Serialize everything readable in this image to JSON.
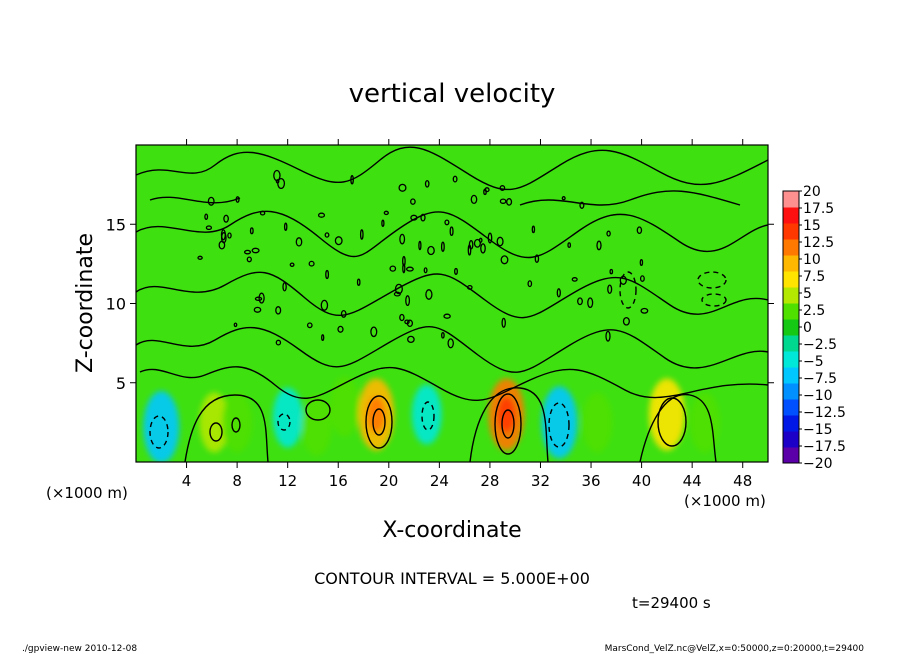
{
  "chart_data": {
    "type": "heatmap",
    "title": "vertical velocity",
    "xlabel": "X-coordinate",
    "ylabel": "Z-coordinate",
    "x_unit": "(×1000 m)",
    "y_unit": "(×1000 m)",
    "xlim": [
      0,
      50
    ],
    "ylim": [
      0,
      20
    ],
    "x_ticks": [
      "4",
      "8",
      "12",
      "16",
      "20",
      "24",
      "28",
      "32",
      "36",
      "40",
      "44",
      "48"
    ],
    "y_ticks": [
      "5",
      "10",
      "15"
    ],
    "contour_interval_text": "CONTOUR INTERVAL = 5.000E+00",
    "time_text": "t=29400 s",
    "colorbar": {
      "labels": [
        "20",
        "17.5",
        "15",
        "12.5",
        "10",
        "7.5",
        "5",
        "2.5",
        "0",
        "−2.5",
        "−5",
        "−7.5",
        "−10",
        "−12.5",
        "−15",
        "−17.5",
        "−20"
      ],
      "colors": [
        "#5b00a8",
        "#1c00c8",
        "#0018e6",
        "#0050ff",
        "#0090ff",
        "#00c8ff",
        "#00e8d8",
        "#00d890",
        "#14c814",
        "#50e000",
        "#b4e800",
        "#ffe400",
        "#ffb800",
        "#ff7800",
        "#ff3800",
        "#ff1010",
        "#ff9090"
      ]
    },
    "features": [
      {
        "x": 2,
        "z": 2.2,
        "value": -7.5
      },
      {
        "x": 6.2,
        "z": 2.5,
        "value": 5
      },
      {
        "x": 8,
        "z": 2.5,
        "value": 3
      },
      {
        "x": 12,
        "z": 2.8,
        "value": -5
      },
      {
        "x": 14.3,
        "z": 2.3,
        "value": 3
      },
      {
        "x": 16.5,
        "z": 3.5,
        "value": 3
      },
      {
        "x": 19,
        "z": 3,
        "value": 10
      },
      {
        "x": 23,
        "z": 3,
        "value": -5
      },
      {
        "x": 29.3,
        "z": 3,
        "value": 12.5
      },
      {
        "x": 33.5,
        "z": 2.5,
        "value": -7.5
      },
      {
        "x": 36.5,
        "z": 2.5,
        "value": 3
      },
      {
        "x": 42,
        "z": 3,
        "value": 7.5
      },
      {
        "x": 45,
        "z": 2.5,
        "value": 3
      }
    ]
  },
  "footer": {
    "left": "./gpview-new 2010-12-08",
    "right": "MarsCond_VelZ.nc@VelZ,x=0:50000,z=0:20000,t=29400"
  }
}
